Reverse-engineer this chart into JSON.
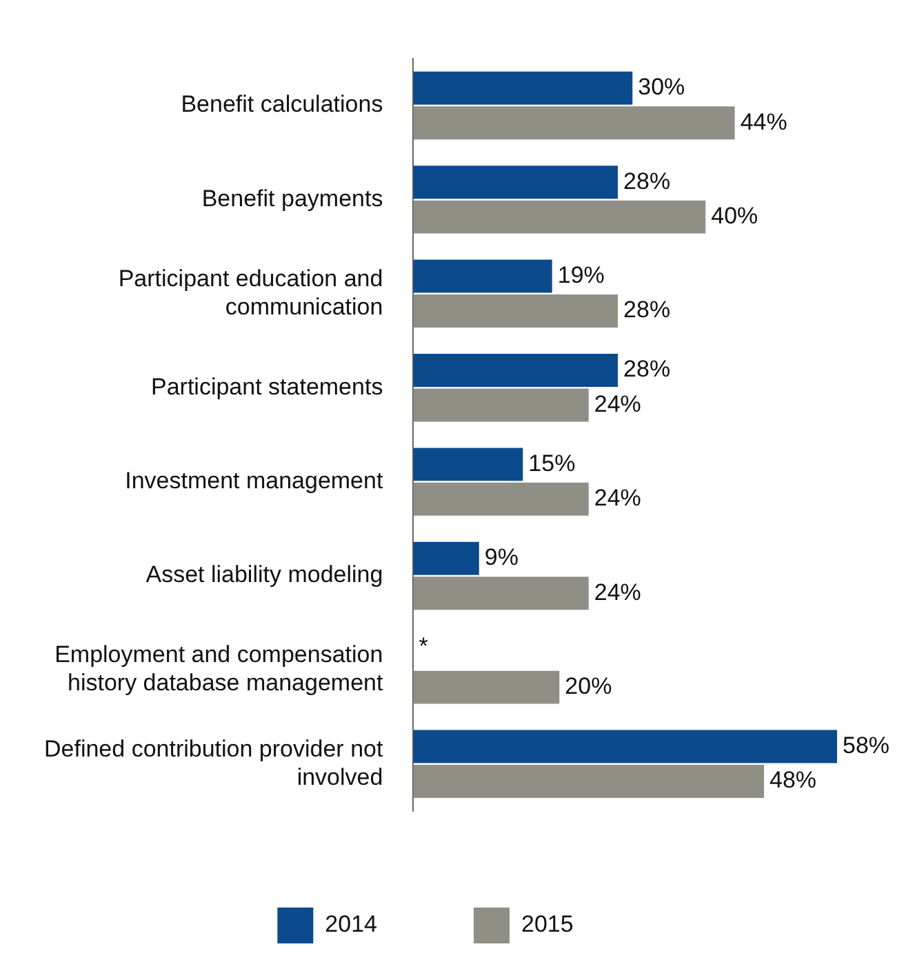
{
  "chart_data": {
    "type": "bar",
    "orientation": "horizontal",
    "categories": [
      "Benefit calculations",
      "Benefit payments",
      "Participant education and communication",
      "Participant statements",
      "Investment management",
      "Asset liability modeling",
      "Employment and compensation history database management",
      "Defined contribution provider not involved"
    ],
    "series": [
      {
        "name": "2014",
        "color": "#0b4a8c",
        "values": [
          30,
          28,
          19,
          28,
          15,
          9,
          null,
          58
        ],
        "value_labels": [
          "30%",
          "28%",
          "19%",
          "28%",
          "15%",
          "9%",
          "*",
          "58%"
        ]
      },
      {
        "name": "2015",
        "color": "#8f8f86",
        "values": [
          44,
          40,
          28,
          24,
          24,
          24,
          20,
          48
        ],
        "value_labels": [
          "44%",
          "40%",
          "28%",
          "24%",
          "24%",
          "24%",
          "20%",
          "48%"
        ]
      }
    ],
    "legend": "bottom",
    "grid": false
  }
}
